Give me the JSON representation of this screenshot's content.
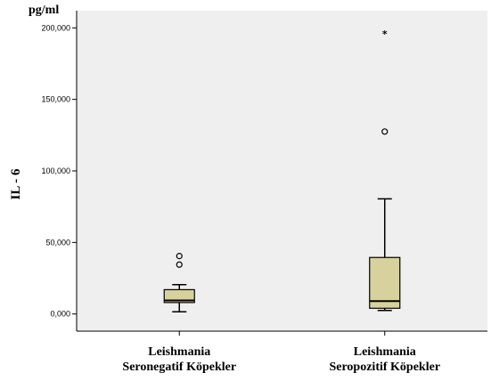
{
  "chart_data": {
    "type": "boxplot",
    "unit_label": "pg/ml",
    "ylabel": "IL - 6",
    "xlabel": "",
    "ylim": [
      -12000,
      212000
    ],
    "yticks": [
      0,
      50000,
      100000,
      150000,
      200000
    ],
    "ytick_labels": [
      "0,000",
      "50,000",
      "100,000",
      "150,000",
      "200,000"
    ],
    "grid": false,
    "colors": {
      "plot_bg": "#efefef",
      "box_fill": "#d7d19d",
      "stroke": "#000000"
    },
    "categories": [
      {
        "line1": "Leishmania",
        "line2": "Seronegatif Köpekler"
      },
      {
        "line1": "Leishmania",
        "line2": "Seropozitif Köpekler"
      }
    ],
    "boxes": [
      {
        "whisker_low": 1500,
        "q1": 8000,
        "median": 9500,
        "q3": 17000,
        "whisker_high": 20500,
        "outliers": [
          34500,
          40500
        ],
        "extremes": []
      },
      {
        "whisker_low": 2500,
        "q1": 4000,
        "median": 9000,
        "q3": 39500,
        "whisker_high": 80500,
        "outliers": [
          127500
        ],
        "extremes": [
          196500
        ]
      }
    ]
  }
}
